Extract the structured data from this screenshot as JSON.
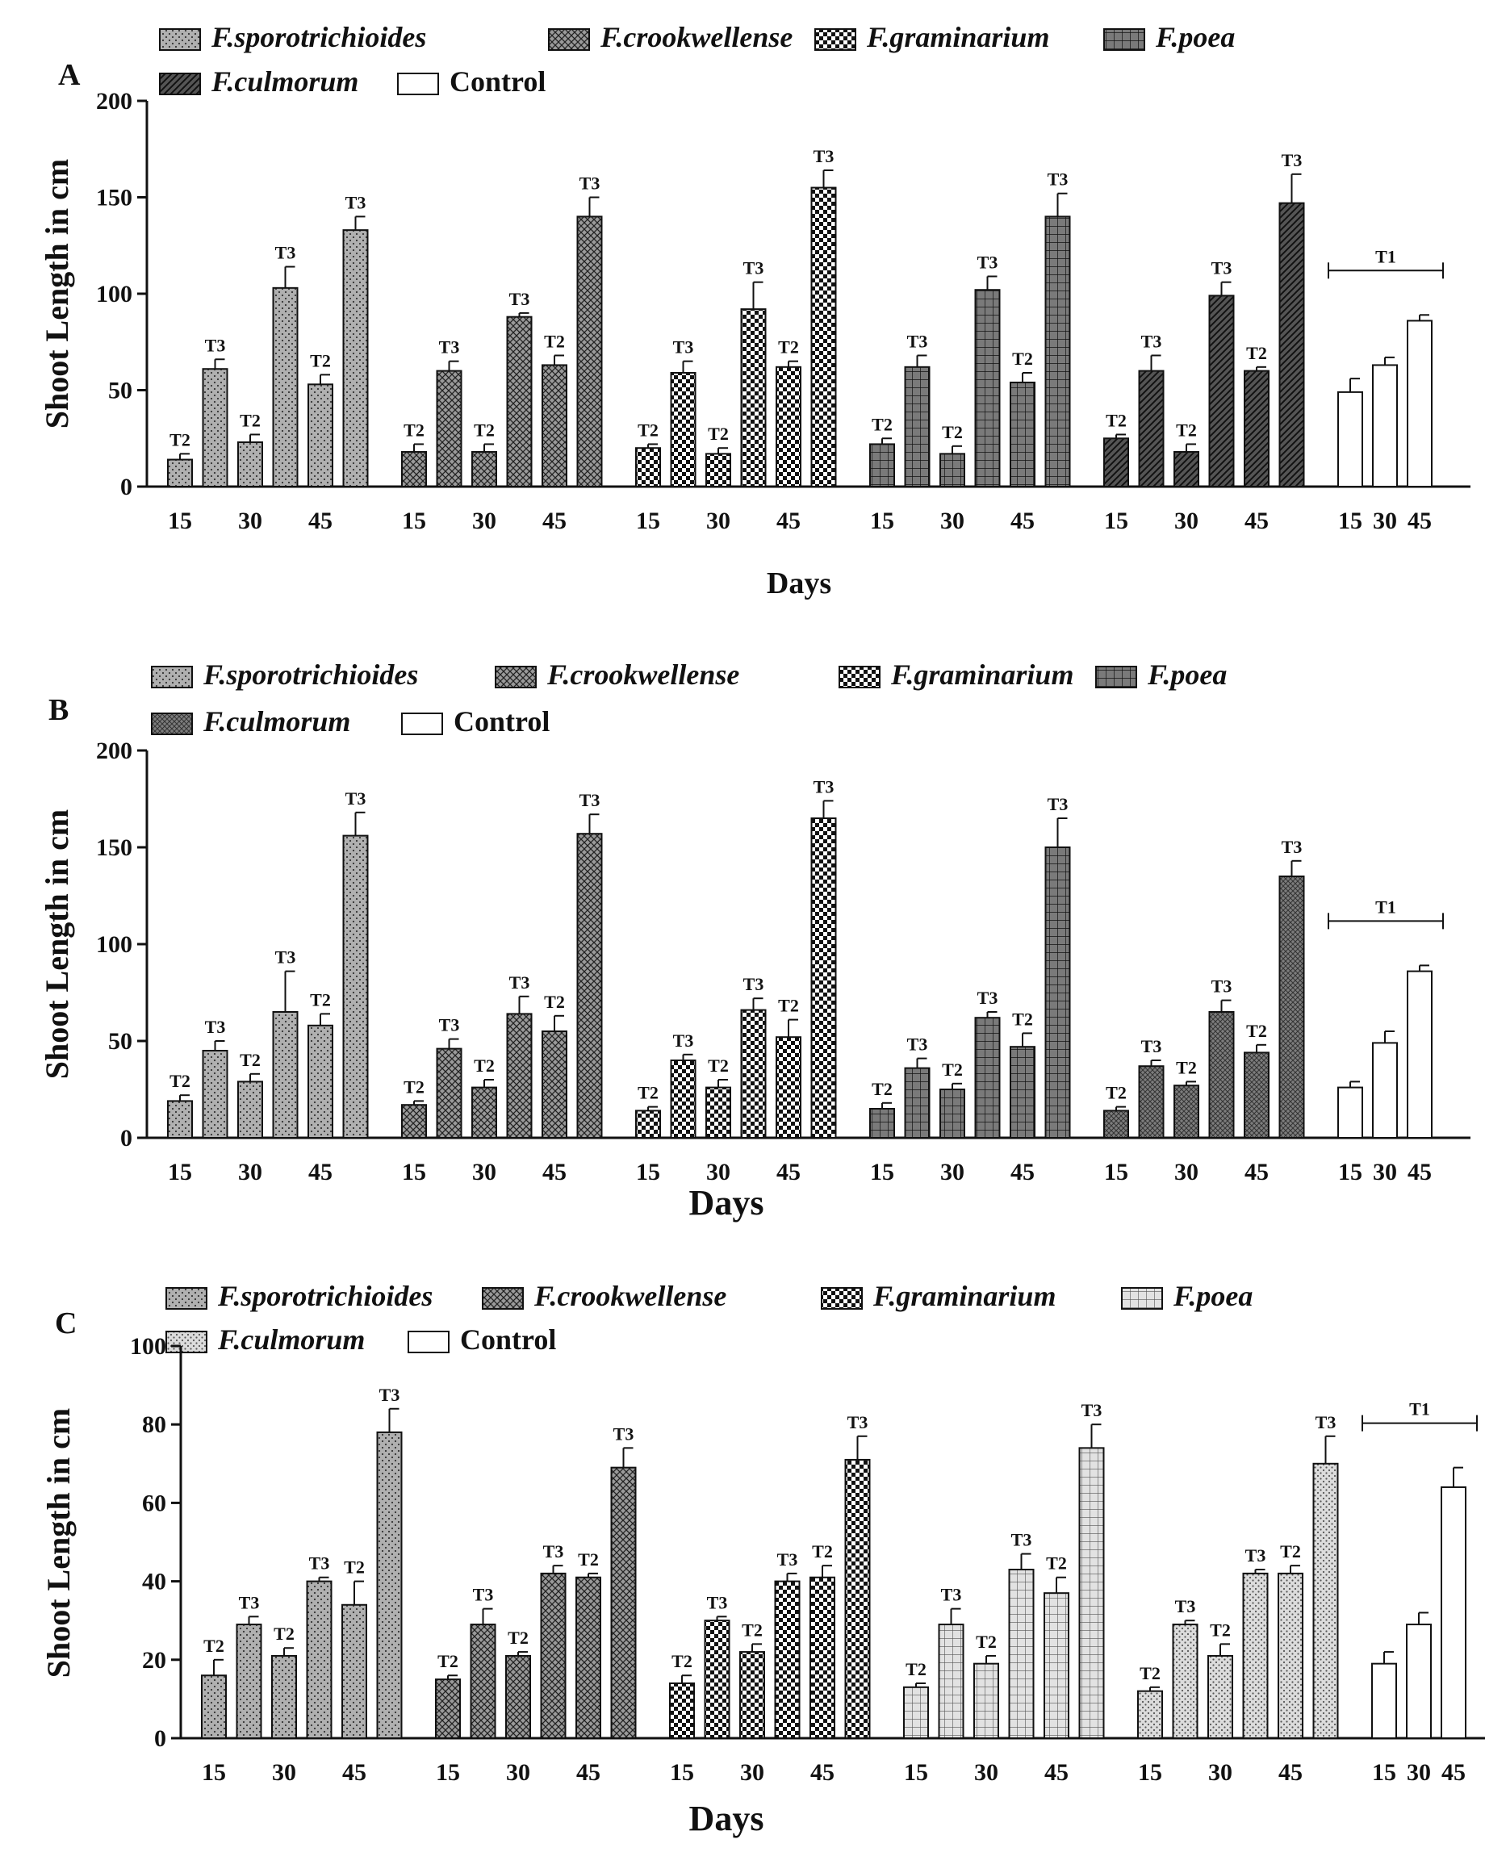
{
  "legend_labels": [
    "F.sporotrichioides",
    "F.crookwellense",
    "F.graminarium",
    "F.poea",
    "F.culmorum",
    "Control"
  ],
  "chart_data": [
    {
      "type": "bar",
      "panel_label": "A",
      "ylabel": "Shoot Length in cm",
      "xlabel": "Days",
      "ylim": [
        0,
        200
      ],
      "yticks": [
        0,
        50,
        100,
        150,
        200
      ],
      "x_tick_labels": [
        "15",
        "30",
        "45"
      ],
      "control_bracket_label": "T1",
      "groups": [
        {
          "name": "F.sporotrichioides",
          "pattern": "dots",
          "values": [
            14,
            61,
            23,
            103,
            53,
            133
          ],
          "errors": [
            3,
            5,
            4,
            11,
            5,
            7
          ],
          "labels": [
            "T2",
            "T3",
            "T2",
            "T3",
            "T2",
            "T3"
          ]
        },
        {
          "name": "F.crookwellense",
          "pattern": "cross",
          "values": [
            18,
            60,
            18,
            88,
            63,
            140
          ],
          "errors": [
            4,
            5,
            4,
            2,
            5,
            10
          ],
          "labels": [
            "T2",
            "T3",
            "T2",
            "T3",
            "T2",
            "T3"
          ]
        },
        {
          "name": "F.graminarium",
          "pattern": "checker",
          "values": [
            20,
            59,
            17,
            92,
            62,
            155
          ],
          "errors": [
            2,
            6,
            3,
            14,
            3,
            9
          ],
          "labels": [
            "T2",
            "T3",
            "T2",
            "T3",
            "T2",
            "T3"
          ]
        },
        {
          "name": "F.poea",
          "pattern": "grid",
          "values": [
            22,
            62,
            17,
            102,
            54,
            140
          ],
          "errors": [
            3,
            6,
            4,
            7,
            5,
            12
          ],
          "labels": [
            "T2",
            "T3",
            "T2",
            "T3",
            "T2",
            "T3"
          ]
        },
        {
          "name": "F.culmorum",
          "pattern": "diag",
          "values": [
            25,
            60,
            18,
            99,
            60,
            147
          ],
          "errors": [
            2,
            8,
            4,
            7,
            2,
            15
          ],
          "labels": [
            "T2",
            "T3",
            "T2",
            "T3",
            "T2",
            "T3"
          ]
        },
        {
          "name": "Control",
          "pattern": "none",
          "values": [
            49,
            63,
            86
          ],
          "errors": [
            7,
            4,
            3
          ],
          "labels": []
        }
      ]
    },
    {
      "type": "bar",
      "panel_label": "B",
      "ylabel": "Shoot Length in cm",
      "xlabel": "Days",
      "ylim": [
        0,
        200
      ],
      "yticks": [
        0,
        50,
        100,
        150,
        200
      ],
      "x_tick_labels": [
        "15",
        "30",
        "45"
      ],
      "control_bracket_label": "T1",
      "groups": [
        {
          "name": "F.sporotrichioides",
          "pattern": "dots",
          "values": [
            19,
            45,
            29,
            65,
            58,
            156
          ],
          "errors": [
            3,
            5,
            4,
            21,
            6,
            12
          ],
          "labels": [
            "T2",
            "T3",
            "T2",
            "T3",
            "T2",
            "T3"
          ]
        },
        {
          "name": "F.crookwellense",
          "pattern": "cross",
          "values": [
            17,
            46,
            26,
            64,
            55,
            157
          ],
          "errors": [
            2,
            5,
            4,
            9,
            8,
            10
          ],
          "labels": [
            "T2",
            "T3",
            "T2",
            "T3",
            "T2",
            "T3"
          ]
        },
        {
          "name": "F.graminarium",
          "pattern": "checker",
          "values": [
            14,
            40,
            26,
            66,
            52,
            165
          ],
          "errors": [
            2,
            3,
            4,
            6,
            9,
            9
          ],
          "labels": [
            "T2",
            "T3",
            "T2",
            "T3",
            "T2",
            "T3"
          ]
        },
        {
          "name": "F.poea",
          "pattern": "grid",
          "values": [
            15,
            36,
            25,
            62,
            47,
            150
          ],
          "errors": [
            3,
            5,
            3,
            3,
            7,
            15
          ],
          "labels": [
            "T2",
            "T3",
            "T2",
            "T3",
            "T2",
            "T3"
          ]
        },
        {
          "name": "F.culmorum",
          "pattern": "dense",
          "values": [
            14,
            37,
            27,
            65,
            44,
            135
          ],
          "errors": [
            2,
            3,
            2,
            6,
            4,
            8
          ],
          "labels": [
            "T2",
            "T3",
            "T2",
            "T3",
            "T2",
            "T3"
          ]
        },
        {
          "name": "Control",
          "pattern": "none",
          "values": [
            26,
            49,
            86
          ],
          "errors": [
            3,
            6,
            3
          ],
          "labels": []
        }
      ]
    },
    {
      "type": "bar",
      "panel_label": "C",
      "ylabel": "Shoot Length in cm",
      "xlabel": "Days",
      "ylim": [
        0,
        100
      ],
      "yticks": [
        0,
        20,
        40,
        60,
        80,
        100
      ],
      "x_tick_labels": [
        "15",
        "30",
        "45"
      ],
      "control_bracket_label": "T1",
      "groups": [
        {
          "name": "F.sporotrichioides",
          "pattern": "dots",
          "values": [
            16,
            29,
            21,
            40,
            34,
            78
          ],
          "errors": [
            4,
            2,
            2,
            1,
            6,
            6
          ],
          "labels": [
            "T2",
            "T3",
            "T2",
            "T3",
            "T2",
            "T3"
          ]
        },
        {
          "name": "F.crookwellense",
          "pattern": "cross",
          "values": [
            15,
            29,
            21,
            42,
            41,
            69
          ],
          "errors": [
            1,
            4,
            1,
            2,
            1,
            5
          ],
          "labels": [
            "T2",
            "T3",
            "T2",
            "T3",
            "T2",
            "T3"
          ]
        },
        {
          "name": "F.graminarium",
          "pattern": "checker",
          "values": [
            14,
            30,
            22,
            40,
            41,
            71
          ],
          "errors": [
            2,
            1,
            2,
            2,
            3,
            6
          ],
          "labels": [
            "T2",
            "T3",
            "T2",
            "T3",
            "T2",
            "T3"
          ]
        },
        {
          "name": "F.poea",
          "pattern": "lightgrid",
          "values": [
            13,
            29,
            19,
            43,
            37,
            74
          ],
          "errors": [
            1,
            4,
            2,
            4,
            4,
            6
          ],
          "labels": [
            "T2",
            "T3",
            "T2",
            "T3",
            "T2",
            "T3"
          ]
        },
        {
          "name": "F.culmorum",
          "pattern": "lightdots",
          "values": [
            12,
            29,
            21,
            42,
            42,
            70
          ],
          "errors": [
            1,
            1,
            3,
            1,
            2,
            7
          ],
          "labels": [
            "T2",
            "T3",
            "T2",
            "T3",
            "T2",
            "T3"
          ]
        },
        {
          "name": "Control",
          "pattern": "none",
          "values": [
            19,
            29,
            64
          ],
          "errors": [
            3,
            3,
            5
          ],
          "labels": []
        }
      ]
    }
  ]
}
